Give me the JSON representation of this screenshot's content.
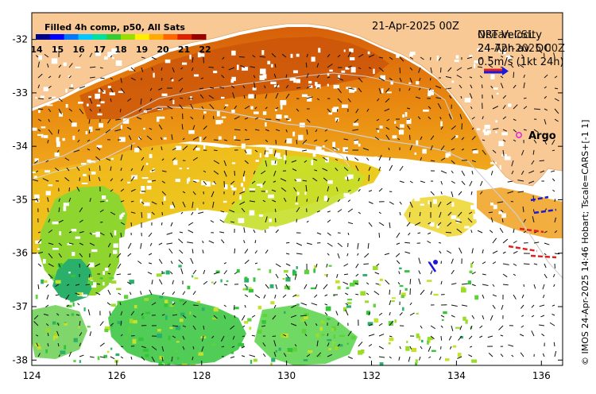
{
  "map": {
    "title": "21-Apr-2025 00Z",
    "colorbar": {
      "label": "Filled 4h comp, p50, All Sats",
      "ticks": [
        "14",
        "15",
        "16",
        "17",
        "18",
        "19",
        "20",
        "21",
        "22"
      ],
      "colors": [
        "#00008b",
        "#0000ff",
        "#0077ff",
        "#00c8ff",
        "#00e0a0",
        "#33cc33",
        "#99dd00",
        "#ffee00",
        "#ffaa00",
        "#ff6600",
        "#dd2200",
        "#990000"
      ]
    },
    "velocity": {
      "title_line1": "NRT Velocity",
      "overlay_text_a": "Ocean CSL",
      "overlay_text_b": "24-72h av. QC",
      "overlay_text_c": "24-Apr-2025 00Z",
      "scale_label": "0.5m/s (1kt 24h)"
    },
    "argo_label": "Argo",
    "credit": "© IMOS 24-Apr-2025 14:46 Hobart; Tscale=CARS+[-1 1]",
    "lon_ticks": [
      "124",
      "126",
      "128",
      "130",
      "132",
      "134",
      "136"
    ],
    "lat_ticks": [
      "-32",
      "-33",
      "-34",
      "-35",
      "-36",
      "-37",
      "-38"
    ],
    "colors": {
      "land": "#f9c995",
      "ocean_nodata": "#ffffff"
    }
  }
}
